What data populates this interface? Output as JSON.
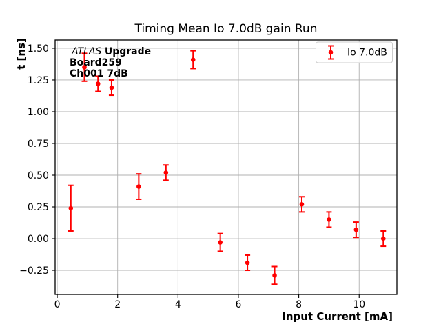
{
  "chart_data": {
    "type": "scatter",
    "title": "Timing Mean Io 7.0dB gain Run",
    "xlabel": "Input Current [mA]",
    "ylabel": "t [ns]",
    "xlim": [
      -0.07,
      11.25
    ],
    "ylim": [
      -0.44,
      1.565
    ],
    "grid": true,
    "legend_position": "upper-right",
    "x_ticks": [
      {
        "v": 0,
        "label": "0"
      },
      {
        "v": 2,
        "label": "2"
      },
      {
        "v": 4,
        "label": "4"
      },
      {
        "v": 6,
        "label": "6"
      },
      {
        "v": 8,
        "label": "8"
      },
      {
        "v": 10,
        "label": "10"
      }
    ],
    "y_ticks": [
      {
        "v": 1.5,
        "label": "1.50"
      },
      {
        "v": 1.25,
        "label": "1.25"
      },
      {
        "v": 1.0,
        "label": "1.00"
      },
      {
        "v": 0.75,
        "label": "0.75"
      },
      {
        "v": 0.5,
        "label": "0.50"
      },
      {
        "v": 0.25,
        "label": "0.25"
      },
      {
        "v": 0.0,
        "label": "0.00"
      },
      {
        "v": -0.25,
        "label": "−0.25"
      }
    ],
    "legend": {
      "entries": [
        {
          "label": "Io 7.0dB",
          "color": "#ff0000",
          "marker": "errorbar-point"
        }
      ]
    },
    "series": [
      {
        "name": "Io 7.0dB",
        "color": "#ff0000",
        "marker": "circle-with-errorbars",
        "x": [
          0.45,
          0.9,
          1.35,
          1.8,
          2.7,
          3.6,
          4.5,
          5.4,
          6.3,
          7.2,
          8.1,
          9.0,
          9.9,
          10.8
        ],
        "y": [
          0.24,
          1.35,
          1.22,
          1.19,
          0.41,
          0.52,
          1.41,
          -0.03,
          -0.19,
          -0.29,
          0.27,
          0.15,
          0.07,
          0.0
        ],
        "yerr": [
          0.18,
          0.11,
          0.06,
          0.06,
          0.1,
          0.06,
          0.07,
          0.07,
          0.06,
          0.07,
          0.06,
          0.06,
          0.06,
          0.06
        ]
      }
    ],
    "annotation_lines": [
      {
        "segments": [
          {
            "text": "ATLAS ",
            "italic": true,
            "bold": false
          },
          {
            "text": "Upgrade",
            "italic": false,
            "bold": true
          }
        ]
      },
      {
        "segments": [
          {
            "text": "Board259",
            "italic": false,
            "bold": true
          }
        ]
      },
      {
        "segments": [
          {
            "text": "Ch001 7dB",
            "italic": false,
            "bold": true
          }
        ]
      }
    ],
    "colors": {
      "series": "#ff0000",
      "grid": "#b0b0b0",
      "spine": "#000000",
      "legend_border": "#cccccc",
      "text": "#000000",
      "background": "#ffffff"
    }
  }
}
